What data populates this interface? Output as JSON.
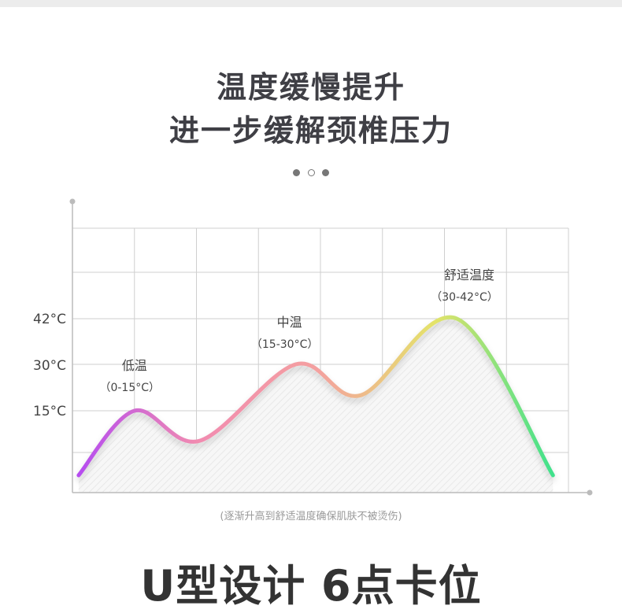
{
  "header": {
    "title_line1": "温度缓慢提升",
    "title_line2": "进一步缓解颈椎压力"
  },
  "pager": {
    "count": 3,
    "active_index": 1
  },
  "chart_data": {
    "type": "line",
    "title": "",
    "xlabel": "",
    "ylabel": "",
    "y_ticks": [
      "15°C",
      "30°C",
      "42°C"
    ],
    "grid": true,
    "series": [
      {
        "x": [
          0.1,
          1.0,
          2.05,
          3.6,
          4.65,
          6.2,
          7.75
        ],
        "values": [
          0,
          15,
          8,
          30,
          20,
          42,
          0
        ],
        "gradient": [
          "#b54cf0",
          "#f18bb0",
          "#f4a0a0",
          "#e4e36a",
          "#3fe18c"
        ]
      }
    ],
    "annotations": [
      {
        "label": "低温",
        "range": "（0-15°C）",
        "x": 1.0
      },
      {
        "label": "中温",
        "range": "（15-30°C）",
        "x": 3.5
      },
      {
        "label": "舒适温度",
        "range": "（30-42°C）",
        "x": 6.4
      }
    ]
  },
  "footnote": "(逐渐升高到舒适温度确保肌肤不被烫伤)",
  "bottom_heading": "U型设计 6点卡位"
}
